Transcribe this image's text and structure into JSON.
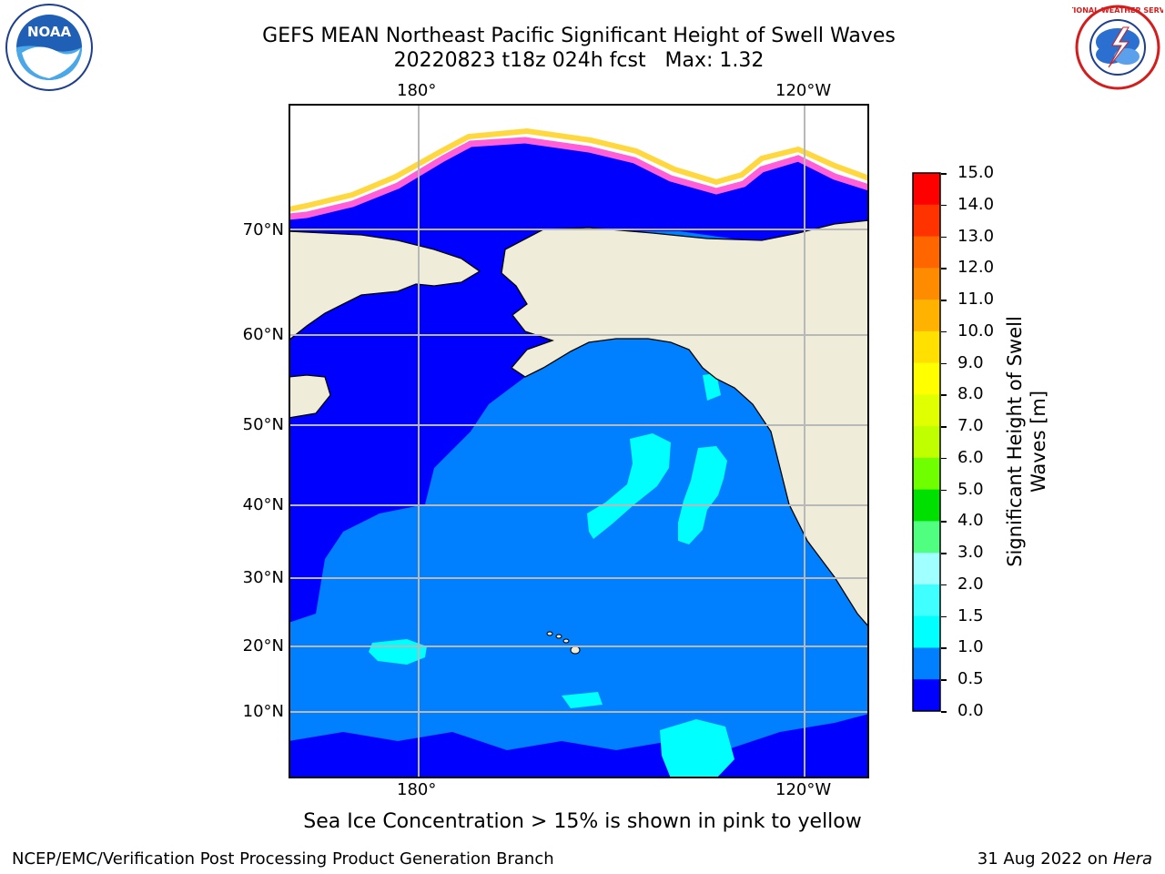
{
  "header": {
    "title_line1": "GEFS MEAN Northeast Pacific Significant Height of Swell Waves",
    "title_line2": "20220823 t18z 024h fcst   Max: 1.32"
  },
  "logos": {
    "left": {
      "text": "NOAA",
      "ring_text": "NATIONAL OCEANIC AND ATMOSPHERIC ADMINISTRATION",
      "bottom_text": "U.S. DEPARTMENT OF COMMERCE"
    },
    "right": {
      "ring_text": "NATIONAL WEATHER SERVICE"
    }
  },
  "map": {
    "lon_labels_top": [
      "180°",
      "120°W"
    ],
    "lon_labels_bottom": [
      "180°",
      "120°W"
    ],
    "lat_labels": [
      "70°N",
      "60°N",
      "50°N",
      "40°N",
      "30°N",
      "20°N",
      "10°N"
    ],
    "colors": {
      "land": "#efedda",
      "ocean_low": "#0000ff",
      "ocean_mid": "#0080ff",
      "ocean_high": "#00ffff",
      "ice_pink": "#ff60d8",
      "ice_yellow": "#ffd840"
    }
  },
  "colorbar": {
    "title_line1": "Significant Height of Swell",
    "title_line2": "Waves [m]",
    "ticks": [
      "15.0",
      "14.0",
      "13.0",
      "12.0",
      "11.0",
      "10.0",
      "9.0",
      "8.0",
      "7.0",
      "6.0",
      "5.0",
      "4.0",
      "3.0",
      "2.0",
      "1.5",
      "1.0",
      "0.5",
      "0.0"
    ],
    "colors": [
      "#ff0000",
      "#ff3300",
      "#ff6600",
      "#ff8c00",
      "#ffb300",
      "#ffe000",
      "#ffff00",
      "#e0ff00",
      "#c0ff00",
      "#70ff00",
      "#00e000",
      "#50ff80",
      "#a0ffff",
      "#40ffff",
      "#00ffff",
      "#0080ff",
      "#0000ff"
    ]
  },
  "note": "Sea Ice Concentration > 15% is shown in pink to yellow",
  "footer": {
    "left": "NCEP/EMC/Verification Post Processing Product Generation Branch",
    "right_prefix": "31 Aug 2022 on ",
    "right_machine": "Hera"
  }
}
